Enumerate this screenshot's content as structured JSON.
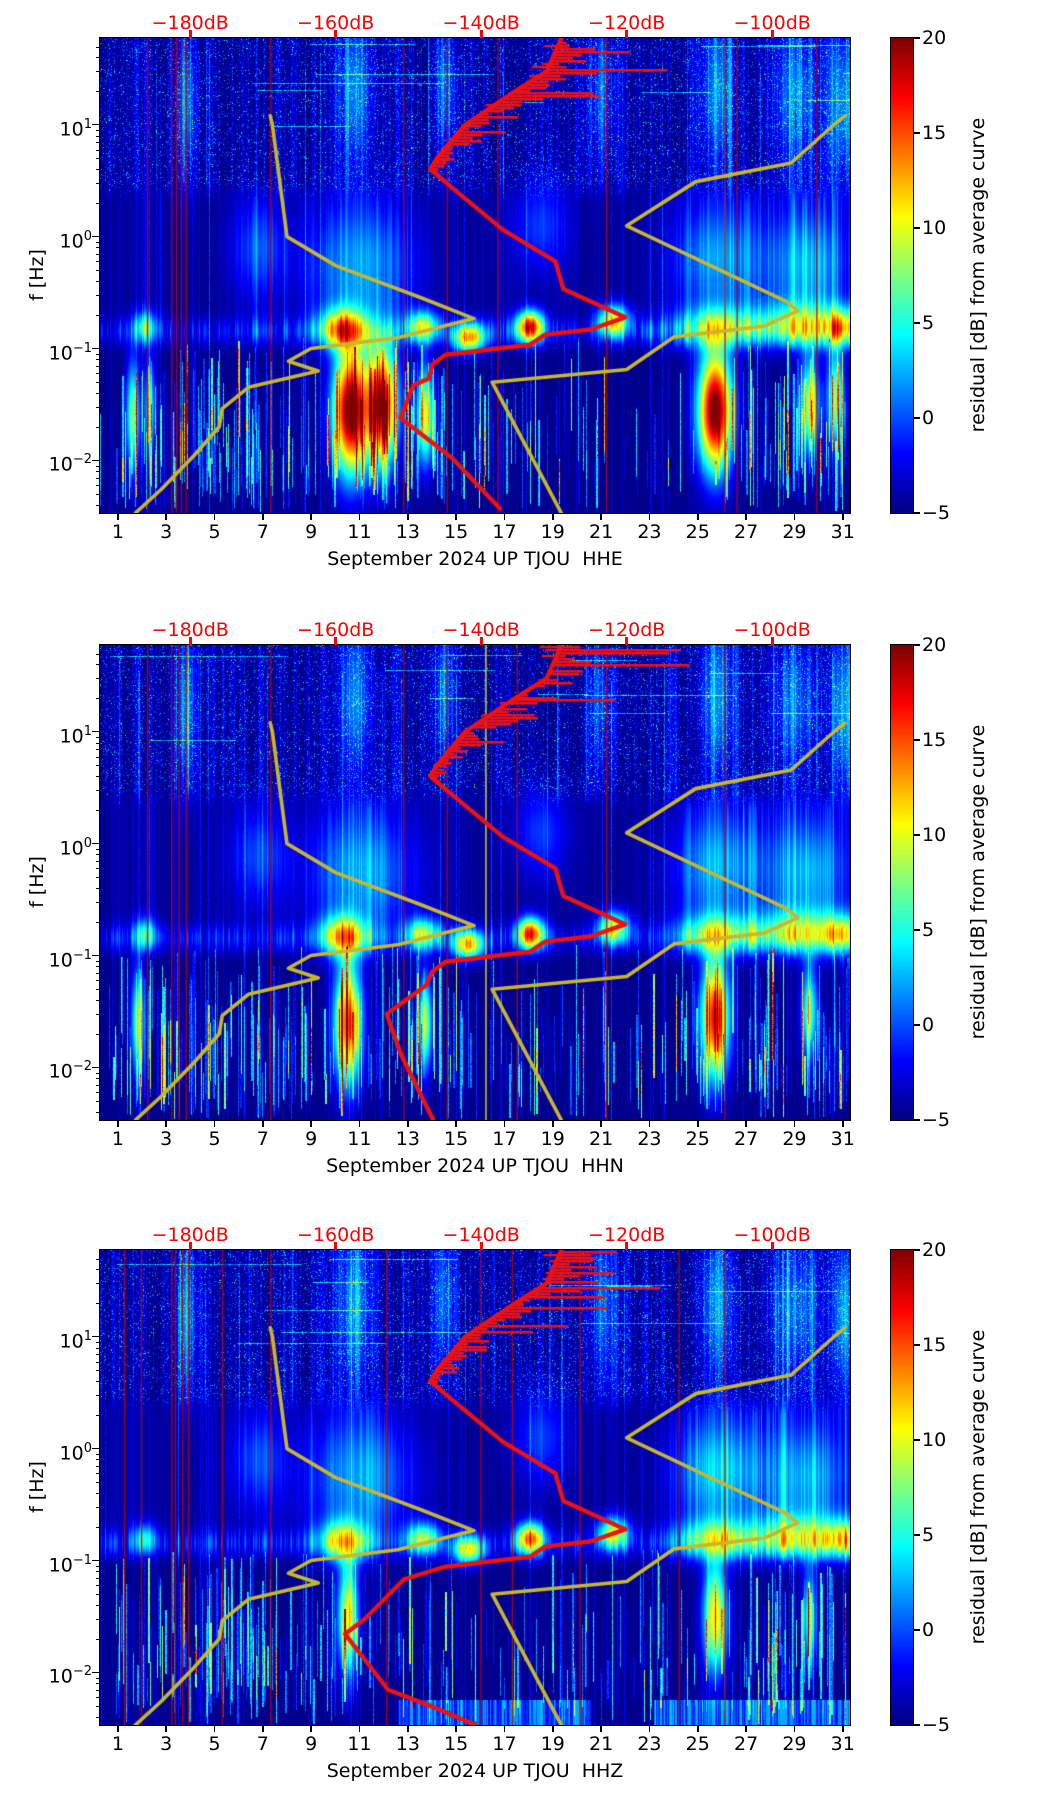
{
  "axes": {
    "ylabel": "f [Hz]",
    "xlim_days": [
      0.26,
      31.3
    ],
    "ylim_log_hz": [
      -2.47,
      1.775
    ],
    "x_tick_labels": [
      "1",
      "3",
      "5",
      "7",
      "9",
      "11",
      "13",
      "15",
      "17",
      "19",
      "21",
      "23",
      "25",
      "27",
      "29",
      "31"
    ],
    "x_tick_values": [
      1,
      3,
      5,
      7,
      9,
      11,
      13,
      15,
      17,
      19,
      21,
      23,
      25,
      27,
      29,
      31
    ],
    "y_ticks": [
      {
        "base": "10",
        "exp": "1",
        "value_hz": 10
      },
      {
        "base": "10",
        "exp": "0",
        "value_hz": 1
      },
      {
        "base": "10",
        "exp": "−1",
        "value_hz": 0.1
      },
      {
        "base": "10",
        "exp": "−2",
        "value_hz": 0.01
      }
    ]
  },
  "top_axis": {
    "color": "#ff0000",
    "unit": "dB",
    "range_db": [
      -192.4,
      -89.3
    ],
    "tick_values": [
      -180,
      -160,
      -140,
      -120,
      -100
    ],
    "tick_labels": [
      "−180dB",
      "−160dB",
      "−140dB",
      "−120dB",
      "−100dB"
    ]
  },
  "colorbar": {
    "label": "residual [dB] from average curve",
    "colormap": "jet",
    "min": -5,
    "max": 20,
    "tick_values": [
      20,
      15,
      10,
      5,
      0,
      -5
    ],
    "tick_labels": [
      "20",
      "15",
      "10",
      "5",
      "0",
      "−5"
    ]
  },
  "colors": {
    "mean_psd_curve": "#ec1212",
    "noise_model_curve": "#c9b62f",
    "event_line_red": "#bb0000",
    "event_line_yellow": "#e8e000",
    "background_residual_db": -4.7
  },
  "noise_models": {
    "nlnm_f_db": [
      [
        12,
        -169
      ],
      [
        10,
        -168.7
      ],
      [
        1,
        -166.7
      ],
      [
        0.55,
        -160
      ],
      [
        0.28,
        -148
      ],
      [
        0.185,
        -141
      ],
      [
        0.125,
        -151.5
      ],
      [
        0.1,
        -163.4
      ],
      [
        0.077,
        -166.5
      ],
      [
        0.063,
        -162.4
      ],
      [
        0.045,
        -172
      ],
      [
        0.029,
        -175.6
      ],
      [
        0.02,
        -176
      ],
      [
        0.011,
        -179.5
      ],
      [
        0.0055,
        -184
      ],
      [
        0.0034,
        -187.5
      ]
    ],
    "nhnm_f_db": [
      [
        12,
        -90
      ],
      [
        10,
        -91.5
      ],
      [
        4.55,
        -97.4
      ],
      [
        3.1,
        -110.5
      ],
      [
        1.25,
        -120
      ],
      [
        0.263,
        -98
      ],
      [
        0.217,
        -96.5
      ],
      [
        0.159,
        -101
      ],
      [
        0.127,
        -113.5
      ],
      [
        0.065,
        -120
      ],
      [
        0.05,
        -138.5
      ],
      [
        0.0034,
        -129
      ]
    ]
  },
  "chart_data": [
    {
      "type": "heatmap",
      "title": "September 2024 UP TJOU  HHE",
      "channel": "HHE",
      "seed": 101,
      "mean_psd_f_db": [
        [
          59,
          -129
        ],
        [
          30,
          -131
        ],
        [
          20,
          -135.3
        ],
        [
          10,
          -142.2
        ],
        [
          5,
          -146.1
        ],
        [
          4,
          -147
        ],
        [
          2.6,
          -143.6
        ],
        [
          1.15,
          -137
        ],
        [
          0.6,
          -129.8
        ],
        [
          0.34,
          -128.7
        ],
        [
          0.19,
          -120.2
        ],
        [
          0.148,
          -125
        ],
        [
          0.133,
          -131.2
        ],
        [
          0.108,
          -133.3
        ],
        [
          0.088,
          -144.9
        ],
        [
          0.072,
          -146.7
        ],
        [
          0.054,
          -147.2
        ],
        [
          0.047,
          -149.3
        ],
        [
          0.024,
          -151.1
        ],
        [
          0.0105,
          -144
        ],
        [
          0.0037,
          -137.4
        ]
      ],
      "event_days_red": [
        2.2,
        3.2,
        3.4,
        3.6,
        3.8,
        7.3,
        12.8,
        14.6,
        16.7,
        21.2,
        26.1,
        26.6,
        29.9
      ],
      "event_days_yellow": [],
      "blobs_day_logf_sd_sf_amp": [
        [
          10.3,
          -0.82,
          0.7,
          0.13,
          14
        ],
        [
          13.6,
          -0.8,
          0.5,
          0.1,
          12
        ],
        [
          15.5,
          -0.9,
          0.45,
          0.09,
          16
        ],
        [
          18.05,
          -0.8,
          0.4,
          0.1,
          20
        ],
        [
          21.5,
          -0.75,
          0.45,
          0.1,
          15
        ],
        [
          25.8,
          -0.8,
          1.2,
          0.13,
          9
        ],
        [
          29.3,
          -0.78,
          1.3,
          0.14,
          10
        ],
        [
          2.1,
          -0.8,
          0.35,
          0.1,
          8
        ],
        [
          31,
          -0.8,
          0.5,
          0.12,
          10
        ],
        [
          11,
          -0.25,
          1.5,
          0.38,
          6
        ],
        [
          25.8,
          -0.2,
          1.2,
          0.33,
          6
        ],
        [
          29.5,
          -0.25,
          1.2,
          0.33,
          6
        ],
        [
          6.8,
          -0.1,
          0.8,
          0.3,
          4
        ],
        [
          18.5,
          0.1,
          0.8,
          0.3,
          4
        ],
        [
          10.6,
          -1.55,
          0.5,
          0.4,
          26
        ],
        [
          11.9,
          -1.5,
          0.45,
          0.38,
          24
        ],
        [
          25.7,
          -1.55,
          0.5,
          0.38,
          26
        ],
        [
          13.7,
          -1.6,
          0.25,
          0.3,
          15
        ],
        [
          29.6,
          -1.5,
          0.3,
          0.3,
          13
        ],
        [
          30.7,
          -1.45,
          0.25,
          0.3,
          13
        ],
        [
          1.6,
          -1.6,
          0.2,
          0.35,
          12
        ],
        [
          2.3,
          -1.55,
          0.15,
          0.3,
          10
        ],
        [
          10.8,
          1.3,
          0.5,
          0.5,
          6
        ],
        [
          25.8,
          1.3,
          0.5,
          0.5,
          6
        ],
        [
          29,
          1.25,
          0.7,
          0.45,
          5
        ],
        [
          3.8,
          1.2,
          0.3,
          0.5,
          6
        ],
        [
          14.5,
          1.35,
          0.3,
          0.45,
          5
        ],
        [
          21,
          1.3,
          0.4,
          0.45,
          4
        ],
        [
          31,
          1.2,
          0.4,
          0.5,
          6
        ]
      ],
      "mid_stripe_envelope": [
        [
          11,
          1.5,
          0.6
        ],
        [
          25.8,
          1.3,
          0.8
        ],
        [
          29.3,
          1.5,
          0.9
        ],
        [
          6.5,
          1,
          0.3
        ],
        [
          2,
          0.7,
          0.35
        ]
      ],
      "low_line_count": 300,
      "low_line_extra_dayranges": [
        [
          1,
          9,
          120
        ],
        [
          9.5,
          14.5,
          60
        ],
        [
          27,
          31.3,
          60
        ]
      ],
      "bottom_band": null
    },
    {
      "type": "heatmap",
      "title": "September 2024 UP TJOU  HHN",
      "channel": "HHN",
      "seed": 202,
      "mean_psd_f_db": [
        [
          59,
          -129
        ],
        [
          30,
          -131
        ],
        [
          20,
          -135.3
        ],
        [
          10,
          -142.2
        ],
        [
          5,
          -146.1
        ],
        [
          4,
          -147
        ],
        [
          2.6,
          -143.6
        ],
        [
          1.15,
          -137
        ],
        [
          0.6,
          -129.8
        ],
        [
          0.34,
          -128.7
        ],
        [
          0.19,
          -120.2
        ],
        [
          0.148,
          -125
        ],
        [
          0.133,
          -131.2
        ],
        [
          0.108,
          -133.3
        ],
        [
          0.088,
          -144.9
        ],
        [
          0.072,
          -146.7
        ],
        [
          0.054,
          -147.6
        ],
        [
          0.03,
          -153
        ],
        [
          0.013,
          -151
        ],
        [
          0.0034,
          -146.6
        ]
      ],
      "event_days_red": [
        2.2,
        3.2,
        3.5,
        3.8,
        7.3,
        12.8,
        14.6,
        17.5,
        21.2,
        26.1
      ],
      "event_days_yellow": [
        16.2
      ],
      "blobs_day_logf_sd_sf_amp": [
        [
          10.3,
          -0.82,
          0.7,
          0.13,
          13
        ],
        [
          13.6,
          -0.8,
          0.5,
          0.1,
          11
        ],
        [
          15.5,
          -0.9,
          0.45,
          0.09,
          15
        ],
        [
          18.05,
          -0.8,
          0.4,
          0.1,
          20
        ],
        [
          21.5,
          -0.75,
          0.45,
          0.1,
          14
        ],
        [
          25.8,
          -0.8,
          1.2,
          0.13,
          9
        ],
        [
          29.3,
          -0.78,
          1.3,
          0.14,
          10
        ],
        [
          2.1,
          -0.8,
          0.35,
          0.1,
          7
        ],
        [
          31,
          -0.8,
          0.5,
          0.12,
          9
        ],
        [
          11,
          -0.25,
          1.5,
          0.38,
          6
        ],
        [
          25.8,
          -0.2,
          1.2,
          0.33,
          6
        ],
        [
          29.5,
          -0.25,
          1.2,
          0.33,
          6
        ],
        [
          6.8,
          -0.1,
          0.8,
          0.3,
          4
        ],
        [
          18.5,
          0.1,
          0.8,
          0.3,
          4
        ],
        [
          10.5,
          -1.6,
          0.4,
          0.38,
          20
        ],
        [
          25.7,
          -1.55,
          0.4,
          0.38,
          22
        ],
        [
          13.7,
          -1.6,
          0.2,
          0.3,
          13
        ],
        [
          29.6,
          -1.5,
          0.25,
          0.3,
          11
        ],
        [
          1.8,
          -1.6,
          0.2,
          0.35,
          11
        ],
        [
          10.8,
          1.3,
          0.5,
          0.5,
          6
        ],
        [
          25.8,
          1.3,
          0.5,
          0.5,
          6
        ],
        [
          29,
          1.25,
          0.7,
          0.45,
          5
        ],
        [
          3.8,
          1.2,
          0.3,
          0.5,
          6
        ],
        [
          14.5,
          1.35,
          0.3,
          0.45,
          5
        ],
        [
          21,
          1.3,
          0.4,
          0.45,
          4
        ],
        [
          31,
          1.2,
          0.4,
          0.5,
          6
        ]
      ],
      "mid_stripe_envelope": [
        [
          11,
          1.5,
          0.6
        ],
        [
          25.8,
          1.3,
          0.8
        ],
        [
          29.3,
          1.5,
          0.9
        ],
        [
          6.5,
          1,
          0.3
        ],
        [
          2,
          0.7,
          0.35
        ]
      ],
      "low_line_count": 300,
      "low_line_extra_dayranges": [
        [
          1,
          9,
          120
        ],
        [
          9.5,
          14.5,
          50
        ],
        [
          27,
          31.3,
          60
        ]
      ],
      "bottom_band": null
    },
    {
      "type": "heatmap",
      "title": "September 2024 UP TJOU  HHZ",
      "channel": "HHZ",
      "seed": 303,
      "mean_psd_f_db": [
        [
          59,
          -129
        ],
        [
          30,
          -131
        ],
        [
          20,
          -135.3
        ],
        [
          10,
          -142.2
        ],
        [
          5,
          -146.1
        ],
        [
          4,
          -147
        ],
        [
          2.6,
          -143.6
        ],
        [
          1.15,
          -137
        ],
        [
          0.6,
          -129.8
        ],
        [
          0.34,
          -128.7
        ],
        [
          0.19,
          -120.2
        ],
        [
          0.148,
          -125
        ],
        [
          0.133,
          -131.2
        ],
        [
          0.108,
          -133.3
        ],
        [
          0.088,
          -144.9
        ],
        [
          0.068,
          -150.6
        ],
        [
          0.03,
          -156
        ],
        [
          0.022,
          -158.7
        ],
        [
          0.007,
          -152.8
        ],
        [
          0.005,
          -146.9
        ],
        [
          0.0034,
          -140.8
        ]
      ],
      "event_days_red": [
        1.25,
        1.95,
        3.2,
        3.35,
        3.65,
        3.9,
        5.3,
        7.3,
        12.1,
        16.0,
        17.3,
        20.1,
        24.2,
        26.1
      ],
      "event_days_yellow": [],
      "blobs_day_logf_sd_sf_amp": [
        [
          10.3,
          -0.82,
          0.7,
          0.13,
          12
        ],
        [
          13.6,
          -0.8,
          0.5,
          0.1,
          11
        ],
        [
          15.5,
          -0.9,
          0.45,
          0.09,
          14
        ],
        [
          18.05,
          -0.8,
          0.4,
          0.1,
          18
        ],
        [
          21.5,
          -0.75,
          0.45,
          0.1,
          13
        ],
        [
          25.8,
          -0.8,
          1.2,
          0.13,
          9
        ],
        [
          29.3,
          -0.78,
          1.3,
          0.14,
          10
        ],
        [
          2.1,
          -0.8,
          0.35,
          0.1,
          7
        ],
        [
          31,
          -0.8,
          0.5,
          0.12,
          9
        ],
        [
          11,
          -0.25,
          1.5,
          0.38,
          6
        ],
        [
          25.8,
          -0.2,
          1.2,
          0.33,
          7
        ],
        [
          29.5,
          -0.25,
          1.2,
          0.33,
          6
        ],
        [
          6.8,
          -0.1,
          0.8,
          0.3,
          4
        ],
        [
          18.5,
          0.1,
          0.8,
          0.3,
          4
        ],
        [
          10.5,
          -1.5,
          0.3,
          0.35,
          15
        ],
        [
          25.7,
          -1.5,
          0.35,
          0.35,
          16
        ],
        [
          29.6,
          -1.5,
          0.2,
          0.3,
          10
        ],
        [
          10.8,
          1.3,
          0.5,
          0.5,
          6
        ],
        [
          25.8,
          1.3,
          0.5,
          0.5,
          6
        ],
        [
          29,
          1.25,
          0.7,
          0.45,
          5
        ],
        [
          3.8,
          1.2,
          0.3,
          0.5,
          6
        ],
        [
          14.5,
          1.35,
          0.3,
          0.45,
          5
        ],
        [
          21,
          1.3,
          0.4,
          0.45,
          4
        ],
        [
          31,
          1.2,
          0.4,
          0.5,
          6
        ]
      ],
      "mid_stripe_envelope": [
        [
          11,
          1.5,
          0.6
        ],
        [
          25.8,
          1.3,
          0.8
        ],
        [
          29.3,
          1.5,
          0.9
        ],
        [
          6.5,
          1,
          0.3
        ],
        [
          2,
          0.7,
          0.35
        ]
      ],
      "low_line_count": 260,
      "low_line_extra_dayranges": [
        [
          1,
          9,
          110
        ],
        [
          9.5,
          14.5,
          40
        ],
        [
          27,
          31.3,
          50
        ]
      ],
      "bottom_band": {
        "day_ranges": [
          [
            12.6,
            20.6
          ],
          [
            23.2,
            31.3
          ]
        ],
        "logf_top": -2.25,
        "amp": 7
      }
    }
  ]
}
